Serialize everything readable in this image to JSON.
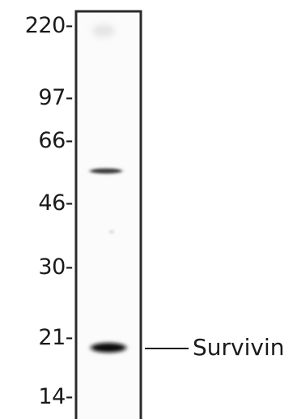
{
  "markers": [
    {
      "label": "220-"
    },
    {
      "label": "97-"
    },
    {
      "label": "66-"
    },
    {
      "label": "46-"
    },
    {
      "label": "30-"
    },
    {
      "label": "21-"
    },
    {
      "label": "14-"
    }
  ],
  "band_label": "Survivin",
  "colors": {
    "band": "#1c1c1c",
    "lane_border": "#2a2a2a",
    "text": "#1a1a1a"
  }
}
